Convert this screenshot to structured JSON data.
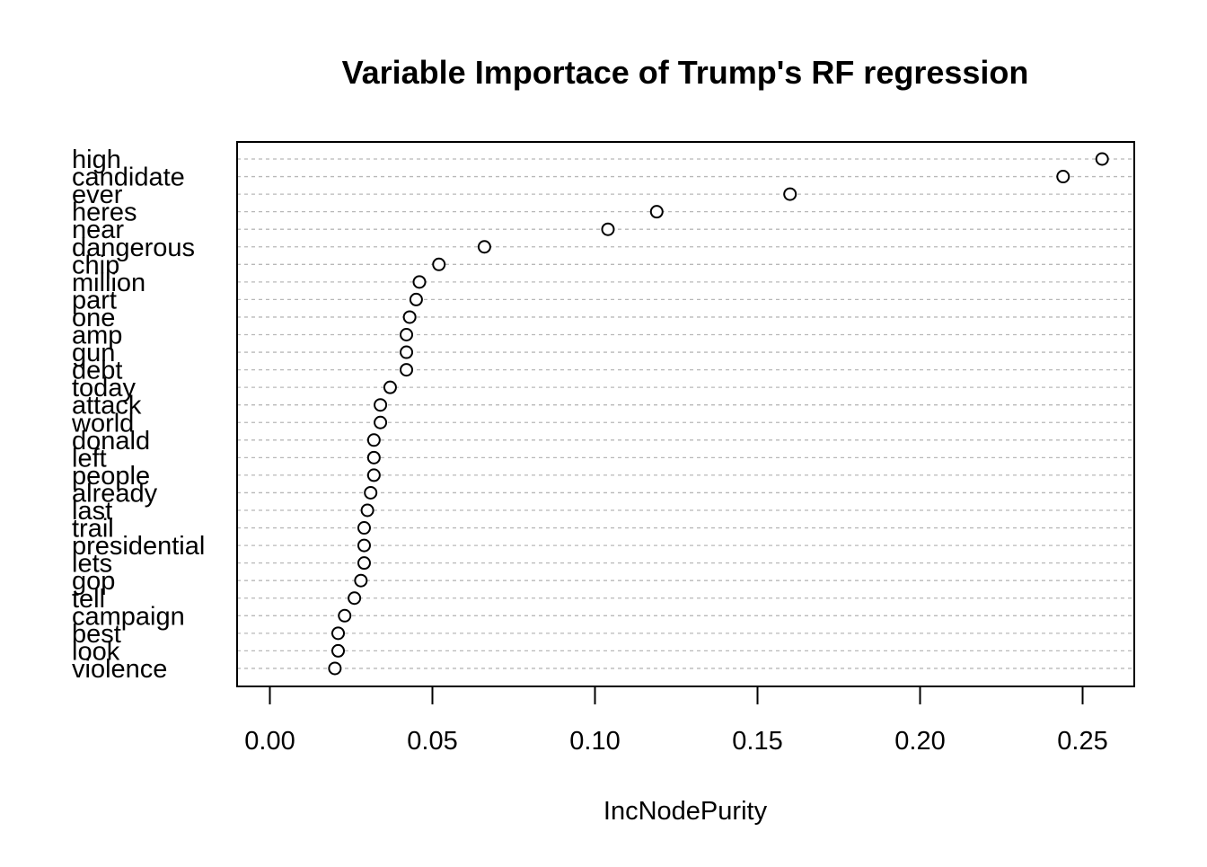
{
  "chart_data": {
    "type": "scatter",
    "title": "Variable Importace of Trump's RF regression",
    "xlabel": "IncNodePurity",
    "ylabel": "",
    "xlim": [
      -0.01,
      0.266
    ],
    "xticks": [
      0.0,
      0.05,
      0.1,
      0.15,
      0.2,
      0.25
    ],
    "xtick_labels": [
      "0.00",
      "0.05",
      "0.10",
      "0.15",
      "0.20",
      "0.25"
    ],
    "grid": "dashed horizontal lines per variable",
    "marker": "open circle",
    "categories": [
      "high",
      "candidate",
      "ever",
      "heres",
      "near",
      "dangerous",
      "chip",
      "million",
      "part",
      "one",
      "amp",
      "gun",
      "debt",
      "today",
      "attack",
      "world",
      "donald",
      "left",
      "people",
      "already",
      "last",
      "trail",
      "presidential",
      "lets",
      "gop",
      "tell",
      "campaign",
      "best",
      "look",
      "violence"
    ],
    "values": [
      0.256,
      0.244,
      0.16,
      0.119,
      0.104,
      0.066,
      0.052,
      0.046,
      0.045,
      0.043,
      0.042,
      0.042,
      0.042,
      0.037,
      0.034,
      0.034,
      0.032,
      0.032,
      0.032,
      0.031,
      0.03,
      0.029,
      0.029,
      0.029,
      0.028,
      0.026,
      0.023,
      0.021,
      0.021,
      0.02
    ]
  }
}
